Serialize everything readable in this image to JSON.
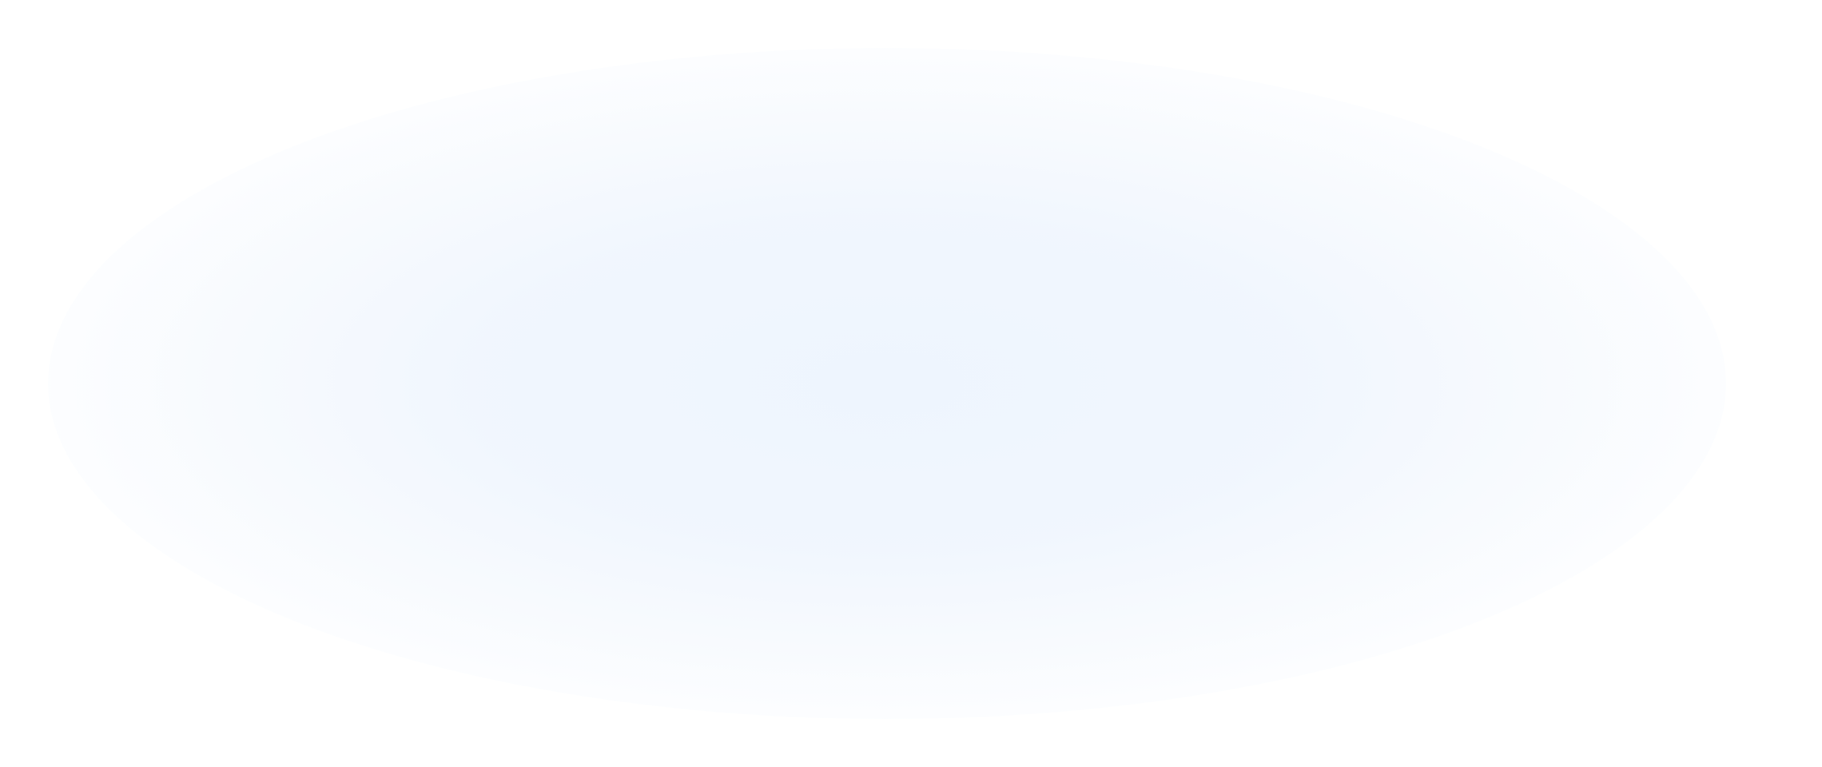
{
  "background": {
    "base_color": "#ffffff",
    "glow_color": "#eef5fe"
  }
}
